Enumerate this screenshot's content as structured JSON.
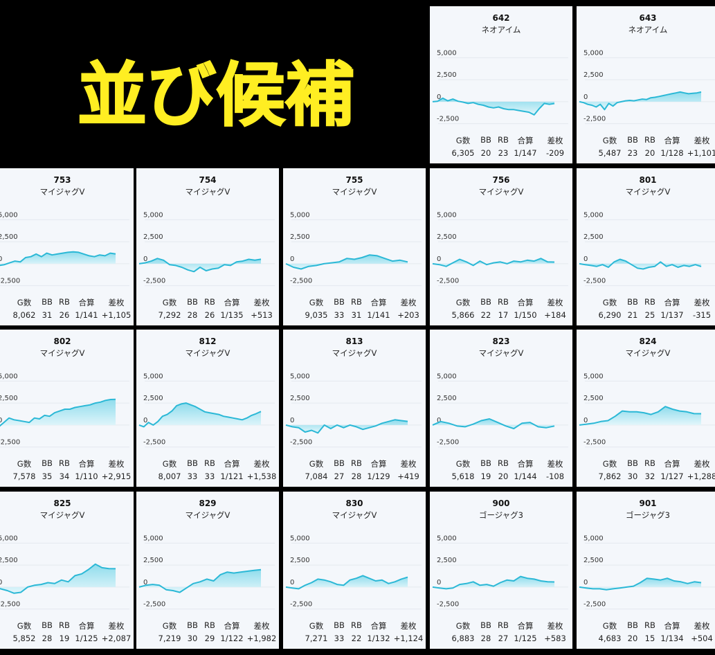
{
  "headline": "並び候補",
  "stat_headers": [
    "G数",
    "BB",
    "RB",
    "合算",
    "差枚"
  ],
  "y_tick_labels": [
    "5,000",
    "2,500",
    "0",
    "-2,500"
  ],
  "colors": {
    "line": "#2bb8d6",
    "fill_top": "#8fdcec",
    "fill_bottom": "#e3f6fb",
    "grid": "#e4e8ee",
    "card": "#f4f7fb"
  },
  "chart_data": [
    {
      "type": "area",
      "title": "642",
      "subtitle": "ネオアイム",
      "ylim": [
        -3000,
        5500
      ],
      "y": [
        0,
        50,
        400,
        100,
        300,
        50,
        -50,
        -200,
        -100,
        -300,
        -400,
        -600,
        -700,
        -600,
        -800,
        -900,
        -900,
        -1000,
        -1100,
        -1200,
        -1500,
        -800,
        -200,
        -300,
        -209
      ],
      "stats": [
        "6,305",
        "20",
        "23",
        "1/147",
        "-209"
      ]
    },
    {
      "type": "area",
      "title": "643",
      "subtitle": "ネオアイム",
      "ylim": [
        -3000,
        5500
      ],
      "y": [
        0,
        -100,
        -300,
        -400,
        -600,
        -300,
        -900,
        -200,
        -500,
        -100,
        0,
        100,
        150,
        100,
        200,
        300,
        250,
        450,
        500,
        600,
        700,
        800,
        900,
        1000,
        1100,
        1000,
        900,
        950,
        1000,
        1101
      ],
      "stats": [
        "5,487",
        "23",
        "20",
        "1/128",
        "+1,101"
      ]
    },
    {
      "type": "area",
      "title": "753",
      "subtitle": "マイジャグV",
      "ylim": [
        -3000,
        5500
      ],
      "y": [
        0,
        -200,
        -100,
        100,
        300,
        200,
        700,
        800,
        1100,
        800,
        1200,
        1000,
        1100,
        1200,
        1300,
        1350,
        1300,
        1100,
        900,
        800,
        1000,
        900,
        1200,
        1105
      ],
      "stats": [
        "8,062",
        "31",
        "26",
        "1/141",
        "+1,105"
      ]
    },
    {
      "type": "area",
      "title": "754",
      "subtitle": "マイジャグV",
      "ylim": [
        -3000,
        5500
      ],
      "y": [
        0,
        100,
        300,
        600,
        400,
        -100,
        -200,
        -400,
        -700,
        -900,
        -400,
        -800,
        -600,
        -500,
        -100,
        -200,
        200,
        300,
        500,
        400,
        513
      ],
      "stats": [
        "7,292",
        "28",
        "26",
        "1/135",
        "+513"
      ]
    },
    {
      "type": "area",
      "title": "755",
      "subtitle": "マイジャグV",
      "ylim": [
        -3000,
        5500
      ],
      "y": [
        0,
        -400,
        -600,
        -300,
        -200,
        0,
        100,
        200,
        600,
        500,
        700,
        1000,
        900,
        600,
        300,
        400,
        203
      ],
      "stats": [
        "9,035",
        "33",
        "31",
        "1/141",
        "+203"
      ]
    },
    {
      "type": "area",
      "title": "756",
      "subtitle": "マイジャグV",
      "ylim": [
        -3000,
        5500
      ],
      "y": [
        0,
        -100,
        -300,
        100,
        500,
        200,
        -200,
        300,
        -100,
        100,
        200,
        0,
        300,
        200,
        400,
        300,
        600,
        200,
        184
      ],
      "stats": [
        "5,866",
        "22",
        "17",
        "1/150",
        "+184"
      ]
    },
    {
      "type": "area",
      "title": "801",
      "subtitle": "マイジャグV",
      "ylim": [
        -3000,
        5500
      ],
      "y": [
        0,
        -100,
        -200,
        -300,
        -100,
        -400,
        200,
        500,
        300,
        -100,
        -500,
        -600,
        -400,
        -300,
        200,
        -300,
        -100,
        -400,
        -200,
        -300,
        -100,
        -315
      ],
      "stats": [
        "6,290",
        "21",
        "25",
        "1/137",
        "-315"
      ]
    },
    {
      "type": "area",
      "title": "802",
      "subtitle": "マイジャグV",
      "ylim": [
        -3000,
        5500
      ],
      "y": [
        0,
        -200,
        300,
        800,
        600,
        500,
        400,
        300,
        800,
        700,
        1100,
        1000,
        1400,
        1600,
        1800,
        1800,
        2000,
        2100,
        2200,
        2300,
        2500,
        2600,
        2800,
        2900,
        2915
      ],
      "stats": [
        "7,578",
        "35",
        "34",
        "1/110",
        "+2,915"
      ]
    },
    {
      "type": "area",
      "title": "812",
      "subtitle": "マイジャグV",
      "ylim": [
        -3000,
        5500
      ],
      "y": [
        0,
        -200,
        300,
        0,
        400,
        1000,
        1200,
        1600,
        2200,
        2400,
        2500,
        2300,
        2100,
        1800,
        1500,
        1400,
        1300,
        1200,
        1000,
        900,
        800,
        700,
        600,
        800,
        1100,
        1300,
        1538
      ],
      "stats": [
        "8,007",
        "33",
        "33",
        "1/121",
        "+1,538"
      ]
    },
    {
      "type": "area",
      "title": "813",
      "subtitle": "マイジャグV",
      "ylim": [
        -3000,
        5500
      ],
      "y": [
        0,
        -200,
        -300,
        -800,
        -600,
        -900,
        0,
        -400,
        0,
        -300,
        0,
        -200,
        -500,
        -300,
        -100,
        200,
        400,
        600,
        500,
        419
      ],
      "stats": [
        "7,084",
        "27",
        "28",
        "1/129",
        "+419"
      ]
    },
    {
      "type": "area",
      "title": "823",
      "subtitle": "マイジャグV",
      "ylim": [
        -3000,
        5500
      ],
      "y": [
        0,
        400,
        200,
        -100,
        -200,
        100,
        500,
        700,
        300,
        -100,
        -400,
        200,
        300,
        -200,
        -300,
        -108
      ],
      "stats": [
        "5,618",
        "19",
        "20",
        "1/144",
        "-108"
      ]
    },
    {
      "type": "area",
      "title": "824",
      "subtitle": "マイジャグV",
      "ylim": [
        -3000,
        5500
      ],
      "y": [
        0,
        100,
        200,
        400,
        500,
        1000,
        1600,
        1500,
        1500,
        1400,
        1200,
        1500,
        2100,
        1800,
        1600,
        1500,
        1300,
        1288
      ],
      "stats": [
        "7,862",
        "30",
        "32",
        "1/127",
        "+1,288"
      ]
    },
    {
      "type": "area",
      "title": "825",
      "subtitle": "マイジャグV",
      "ylim": [
        -3000,
        5500
      ],
      "y": [
        0,
        -200,
        -400,
        -700,
        -600,
        0,
        200,
        300,
        500,
        400,
        800,
        600,
        1300,
        1500,
        2000,
        2600,
        2200,
        2100,
        2087
      ],
      "stats": [
        "5,852",
        "28",
        "19",
        "1/125",
        "+2,087"
      ]
    },
    {
      "type": "area",
      "title": "829",
      "subtitle": "マイジャグV",
      "ylim": [
        -3000,
        5500
      ],
      "y": [
        0,
        200,
        300,
        200,
        -300,
        -400,
        -600,
        -100,
        400,
        600,
        900,
        700,
        1400,
        1700,
        1600,
        1700,
        1800,
        1900,
        1982
      ],
      "stats": [
        "7,219",
        "30",
        "29",
        "1/122",
        "+1,982"
      ]
    },
    {
      "type": "area",
      "title": "830",
      "subtitle": "マイジャグV",
      "ylim": [
        -3000,
        5500
      ],
      "y": [
        0,
        -100,
        -200,
        200,
        500,
        900,
        800,
        600,
        300,
        200,
        800,
        1000,
        1300,
        1000,
        700,
        800,
        400,
        600,
        900,
        1124
      ],
      "stats": [
        "7,271",
        "33",
        "22",
        "1/132",
        "+1,124"
      ]
    },
    {
      "type": "area",
      "title": "900",
      "subtitle": "ゴージャグ3",
      "ylim": [
        -3000,
        5500
      ],
      "y": [
        0,
        -100,
        -200,
        -100,
        300,
        400,
        600,
        200,
        300,
        100,
        500,
        800,
        700,
        1200,
        1000,
        900,
        700,
        600,
        583
      ],
      "stats": [
        "6,883",
        "28",
        "27",
        "1/125",
        "+583"
      ]
    },
    {
      "type": "area",
      "title": "901",
      "subtitle": "ゴージャグ3",
      "ylim": [
        -3000,
        5500
      ],
      "y": [
        0,
        -100,
        -200,
        -200,
        -300,
        -200,
        -100,
        0,
        100,
        500,
        1000,
        900,
        800,
        1000,
        700,
        600,
        400,
        600,
        504
      ],
      "stats": [
        "4,683",
        "20",
        "15",
        "1/134",
        "+504"
      ]
    }
  ]
}
